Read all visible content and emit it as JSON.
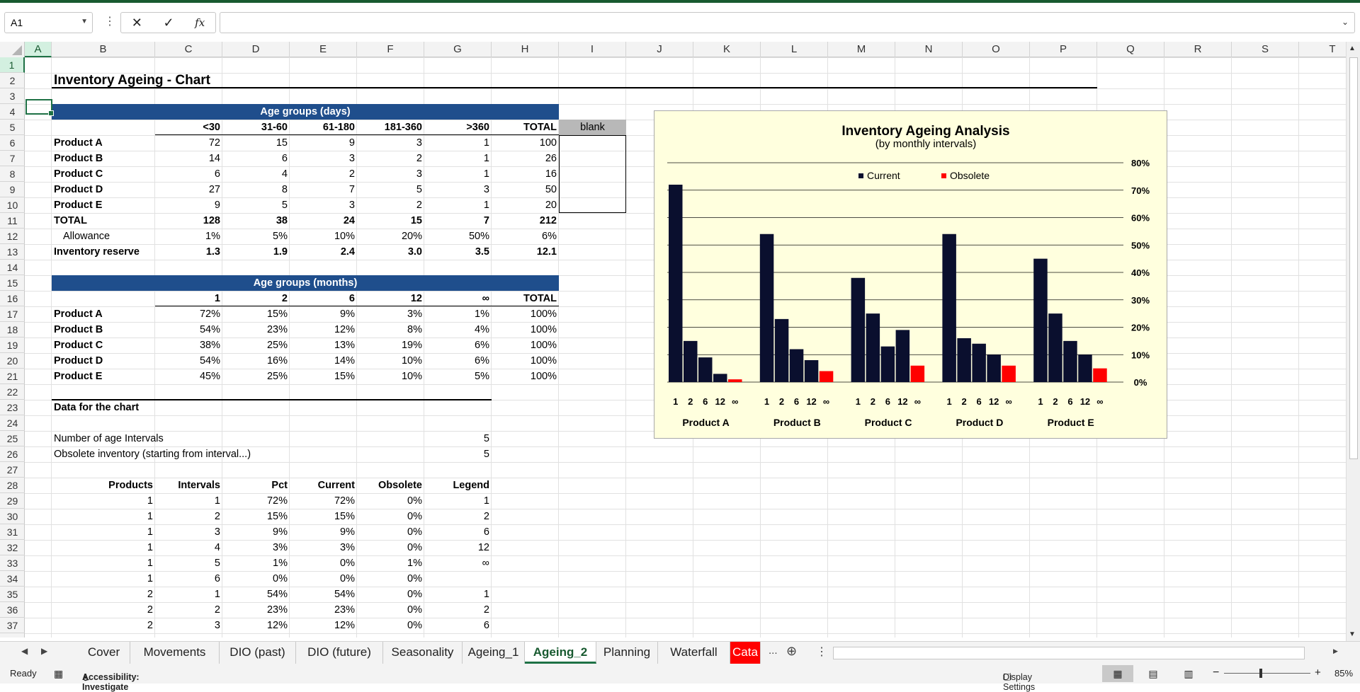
{
  "formula_bar": {
    "name_box": "A1",
    "formula": "",
    "fx": "fx"
  },
  "columns": [
    "A",
    "B",
    "C",
    "D",
    "E",
    "F",
    "G",
    "H",
    "I",
    "J",
    "K",
    "L",
    "M",
    "N",
    "O",
    "P",
    "Q",
    "R",
    "S",
    "T"
  ],
  "rows": [
    "1",
    "2",
    "3",
    "4",
    "5",
    "6",
    "7",
    "8",
    "9",
    "10",
    "11",
    "12",
    "13",
    "14",
    "15",
    "16",
    "17",
    "18",
    "19",
    "20",
    "21",
    "22",
    "23",
    "24",
    "25",
    "26",
    "27",
    "28",
    "29",
    "30",
    "31",
    "32",
    "33",
    "34",
    "35",
    "36",
    "37"
  ],
  "sheet": {
    "title": "Inventory Ageing - Chart",
    "band_days": "Age groups (days)",
    "band_months": "Age groups (months)",
    "days_headers": [
      "<30",
      "31-60",
      "61-180",
      "181-360",
      ">360",
      "TOTAL"
    ],
    "blank_label": "blank",
    "products": [
      "Product A",
      "Product B",
      "Product C",
      "Product D",
      "Product E"
    ],
    "days_values": [
      [
        "72",
        "15",
        "9",
        "3",
        "1",
        "100"
      ],
      [
        "14",
        "6",
        "3",
        "2",
        "1",
        "26"
      ],
      [
        "6",
        "4",
        "2",
        "3",
        "1",
        "16"
      ],
      [
        "27",
        "8",
        "7",
        "5",
        "3",
        "50"
      ],
      [
        "9",
        "5",
        "3",
        "2",
        "1",
        "20"
      ]
    ],
    "total_label": "TOTAL",
    "total_values": [
      "128",
      "38",
      "24",
      "15",
      "7",
      "212"
    ],
    "allowance_label": "Allowance",
    "allowance_values": [
      "1%",
      "5%",
      "10%",
      "20%",
      "50%",
      "6%"
    ],
    "reserve_label": "Inventory reserve",
    "reserve_values": [
      "1.3",
      "1.9",
      "2.4",
      "3.0",
      "3.5",
      "12.1"
    ],
    "months_headers": [
      "1",
      "2",
      "6",
      "12",
      "∞",
      "TOTAL"
    ],
    "months_values": [
      [
        "72%",
        "15%",
        "9%",
        "3%",
        "1%",
        "100%"
      ],
      [
        "54%",
        "23%",
        "12%",
        "8%",
        "4%",
        "100%"
      ],
      [
        "38%",
        "25%",
        "13%",
        "19%",
        "6%",
        "100%"
      ],
      [
        "54%",
        "16%",
        "14%",
        "10%",
        "6%",
        "100%"
      ],
      [
        "45%",
        "25%",
        "15%",
        "10%",
        "5%",
        "100%"
      ]
    ],
    "data_label": "Data for the chart",
    "num_intervals_label": "Number of age Intervals",
    "num_intervals_value": "5",
    "obsolete_label": "Obsolete inventory (starting from interval...)",
    "obsolete_value": "5",
    "table_headers": [
      "Products",
      "Intervals",
      "Pct",
      "Current",
      "Obsolete",
      "Legend"
    ],
    "table_rows": [
      [
        "1",
        "1",
        "72%",
        "72%",
        "0%",
        "1"
      ],
      [
        "1",
        "2",
        "15%",
        "15%",
        "0%",
        "2"
      ],
      [
        "1",
        "3",
        "9%",
        "9%",
        "0%",
        "6"
      ],
      [
        "1",
        "4",
        "3%",
        "3%",
        "0%",
        "12"
      ],
      [
        "1",
        "5",
        "1%",
        "0%",
        "1%",
        "∞"
      ],
      [
        "1",
        "6",
        "0%",
        "0%",
        "0%",
        ""
      ],
      [
        "2",
        "1",
        "54%",
        "54%",
        "0%",
        "1"
      ],
      [
        "2",
        "2",
        "23%",
        "23%",
        "0%",
        "2"
      ],
      [
        "2",
        "3",
        "12%",
        "12%",
        "0%",
        "6"
      ]
    ]
  },
  "chart_data": {
    "type": "bar",
    "title": "Inventory Ageing Analysis",
    "subtitle": "(by monthly intervals)",
    "categories": [
      "Product A",
      "Product B",
      "Product C",
      "Product D",
      "Product E"
    ],
    "interval_labels": [
      "1",
      "2",
      "6",
      "12",
      "∞"
    ],
    "series": [
      {
        "name": "Current",
        "color": "#0a0f2e",
        "values": [
          [
            72,
            15,
            9,
            3,
            0
          ],
          [
            54,
            23,
            12,
            8,
            0
          ],
          [
            38,
            25,
            13,
            19,
            0
          ],
          [
            54,
            16,
            14,
            10,
            0
          ],
          [
            45,
            25,
            15,
            10,
            0
          ]
        ]
      },
      {
        "name": "Obsolete",
        "color": "#ff0000",
        "values": [
          [
            0,
            0,
            0,
            0,
            1
          ],
          [
            0,
            0,
            0,
            0,
            4
          ],
          [
            0,
            0,
            0,
            0,
            6
          ],
          [
            0,
            0,
            0,
            0,
            6
          ],
          [
            0,
            0,
            0,
            0,
            5
          ]
        ]
      }
    ],
    "y_ticks": [
      "0%",
      "10%",
      "20%",
      "30%",
      "40%",
      "50%",
      "60%",
      "70%",
      "80%"
    ],
    "ylim": [
      0,
      80
    ],
    "grid": true,
    "legend_position": "top"
  },
  "tabs": [
    "Cover",
    "Movements",
    "DIO (past)",
    "DIO (future)",
    "Seasonality",
    "Ageing_1",
    "Ageing_2",
    "Planning",
    "Waterfall",
    "Cata"
  ],
  "tabs_more": "...",
  "status": {
    "ready": "Ready",
    "accessibility": "Accessibility: Investigate",
    "display": "Display Settings",
    "zoom": "85%"
  }
}
